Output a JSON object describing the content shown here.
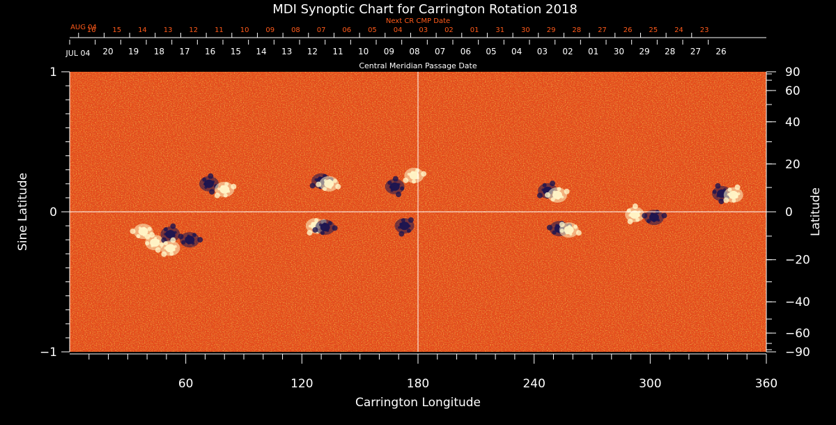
{
  "chart_data": {
    "type": "heatmap",
    "title": "MDI Synoptic Chart for Carrington Rotation 2018",
    "xlabel": "Carrington Longitude",
    "ylabel_left": "Sine Latitude",
    "ylabel_right": "Latitude",
    "top_axis_label": "Central Meridian Passage Date",
    "next_cr_label": "Next CR CMP Date",
    "xlim": [
      0,
      360
    ],
    "ylim": [
      -1,
      1
    ],
    "x_ticks": [
      60,
      120,
      180,
      240,
      300,
      360
    ],
    "left_y_ticks": [
      {
        "value": 1,
        "label": "1"
      },
      {
        "value": 0,
        "label": "0"
      },
      {
        "value": -1,
        "label": "−1"
      }
    ],
    "right_y_ticks": [
      {
        "lat": 90,
        "label": "90"
      },
      {
        "lat": 60,
        "label": "60"
      },
      {
        "lat": 40,
        "label": "40"
      },
      {
        "lat": 20,
        "label": "20"
      },
      {
        "lat": 0,
        "label": "0"
      },
      {
        "lat": -20,
        "label": "−20"
      },
      {
        "lat": -40,
        "label": "−40"
      },
      {
        "lat": -60,
        "label": "−60"
      },
      {
        "lat": -90,
        "label": "−90"
      }
    ],
    "current_rotation_dates": {
      "start_label": "JUL 04",
      "days": [
        "20",
        "19",
        "18",
        "17",
        "16",
        "15",
        "14",
        "13",
        "12",
        "11",
        "10",
        "09",
        "08",
        "07",
        "06",
        "05",
        "04",
        "03",
        "02",
        "01",
        "30",
        "29",
        "28",
        "27",
        "26"
      ],
      "first_day_longitude": 13.2,
      "degrees_per_day": 13.2
    },
    "next_rotation_dates": {
      "start_label": "AUG 04",
      "days": [
        "16",
        "15",
        "14",
        "13",
        "12",
        "11",
        "10",
        "09",
        "08",
        "07",
        "06",
        "05",
        "04",
        "03",
        "02",
        "01",
        "31",
        "30",
        "29",
        "28",
        "27",
        "26",
        "25",
        "24",
        "23"
      ],
      "first_day_longitude": 4.6,
      "degrees_per_day": 13.2
    },
    "guide_lines": {
      "longitude": 180,
      "sine_latitude": 0
    },
    "regions": [
      {
        "lon": 38,
        "sinlat": -0.14,
        "polarity": "positive"
      },
      {
        "lon": 44,
        "sinlat": -0.22,
        "polarity": "positive"
      },
      {
        "lon": 52,
        "sinlat": -0.16,
        "polarity": "negative"
      },
      {
        "lon": 62,
        "sinlat": -0.2,
        "polarity": "negative"
      },
      {
        "lon": 52,
        "sinlat": -0.26,
        "polarity": "positive"
      },
      {
        "lon": 72,
        "sinlat": 0.2,
        "polarity": "negative"
      },
      {
        "lon": 80,
        "sinlat": 0.16,
        "polarity": "positive"
      },
      {
        "lon": 130,
        "sinlat": 0.22,
        "polarity": "negative"
      },
      {
        "lon": 134,
        "sinlat": 0.2,
        "polarity": "positive"
      },
      {
        "lon": 127,
        "sinlat": -0.1,
        "polarity": "positive"
      },
      {
        "lon": 132,
        "sinlat": -0.11,
        "polarity": "negative"
      },
      {
        "lon": 168,
        "sinlat": 0.18,
        "polarity": "negative"
      },
      {
        "lon": 173,
        "sinlat": -0.1,
        "polarity": "negative"
      },
      {
        "lon": 178,
        "sinlat": 0.26,
        "polarity": "positive"
      },
      {
        "lon": 247,
        "sinlat": 0.15,
        "polarity": "negative"
      },
      {
        "lon": 252,
        "sinlat": 0.12,
        "polarity": "positive"
      },
      {
        "lon": 253,
        "sinlat": -0.12,
        "polarity": "negative"
      },
      {
        "lon": 258,
        "sinlat": -0.13,
        "polarity": "positive"
      },
      {
        "lon": 292,
        "sinlat": -0.02,
        "polarity": "positive"
      },
      {
        "lon": 302,
        "sinlat": -0.04,
        "polarity": "negative"
      },
      {
        "lon": 337,
        "sinlat": 0.13,
        "polarity": "negative"
      },
      {
        "lon": 343,
        "sinlat": 0.12,
        "polarity": "positive"
      }
    ],
    "colors": {
      "background_field": "#e8501a",
      "positive_polarity": "#fff6c8",
      "negative_polarity": "#1a1450",
      "guide_lines": "#ffffff",
      "next_cr_text": "#ff5a1a",
      "axis": "#ffffff"
    }
  }
}
